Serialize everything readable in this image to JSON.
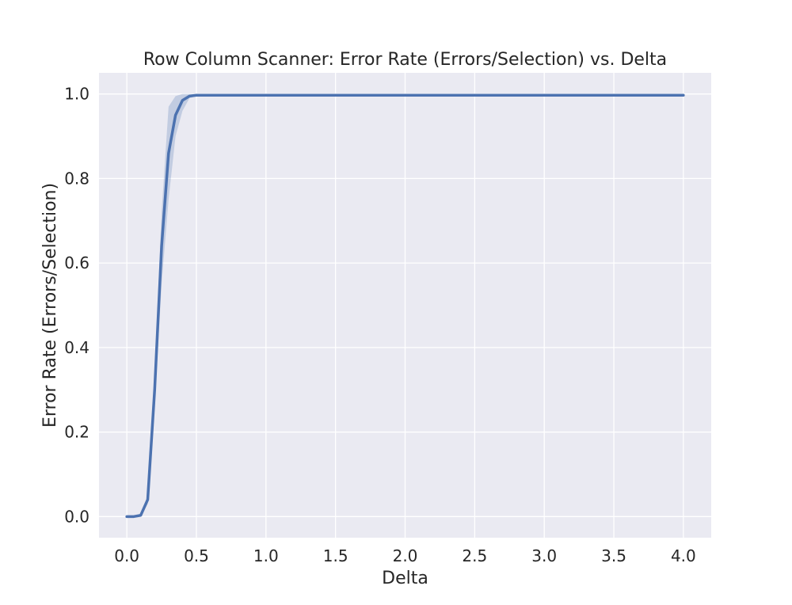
{
  "chart_data": {
    "type": "line",
    "title": "Row Column Scanner: Error Rate (Errors/Selection) vs. Delta",
    "xlabel": "Delta",
    "ylabel": "Error Rate (Errors/Selection)",
    "xlim": [
      -0.2,
      4.2
    ],
    "ylim": [
      -0.05,
      1.05
    ],
    "grid": true,
    "x_ticks": [
      "0.0",
      "0.5",
      "1.0",
      "1.5",
      "2.0",
      "2.5",
      "3.0",
      "3.5",
      "4.0"
    ],
    "y_ticks": [
      "0.0",
      "0.2",
      "0.4",
      "0.6",
      "0.8",
      "1.0"
    ],
    "series": [
      {
        "color": "#4c72b0",
        "x": [
          0,
          0.05,
          0.1,
          0.15,
          0.2,
          0.25,
          0.3,
          0.35,
          0.4,
          0.45,
          0.5,
          1.0,
          1.5,
          2.0,
          2.5,
          3.0,
          3.5,
          4.0
        ],
        "y": [
          0.0,
          0.0,
          0.003,
          0.04,
          0.3,
          0.64,
          0.86,
          0.95,
          0.985,
          0.995,
          0.997,
          0.997,
          0.997,
          0.997,
          0.997,
          0.997,
          0.997,
          0.997
        ],
        "ci_lower": [
          0.0,
          0.0,
          0.0,
          0.03,
          0.26,
          0.55,
          0.75,
          0.9,
          0.96,
          0.99,
          0.995,
          0.995,
          0.995,
          0.995,
          0.995,
          0.995,
          0.995,
          0.995
        ],
        "ci_upper": [
          0.0,
          0.0,
          0.006,
          0.05,
          0.34,
          0.72,
          0.97,
          0.995,
          1.0,
          1.0,
          1.0,
          1.0,
          1.0,
          1.0,
          1.0,
          1.0,
          1.0,
          1.0
        ]
      }
    ]
  },
  "colors": {
    "plot_background": "#eaeaf2",
    "grid": "#ffffff",
    "line": "#4c72b0",
    "band": "#4c72b0"
  }
}
